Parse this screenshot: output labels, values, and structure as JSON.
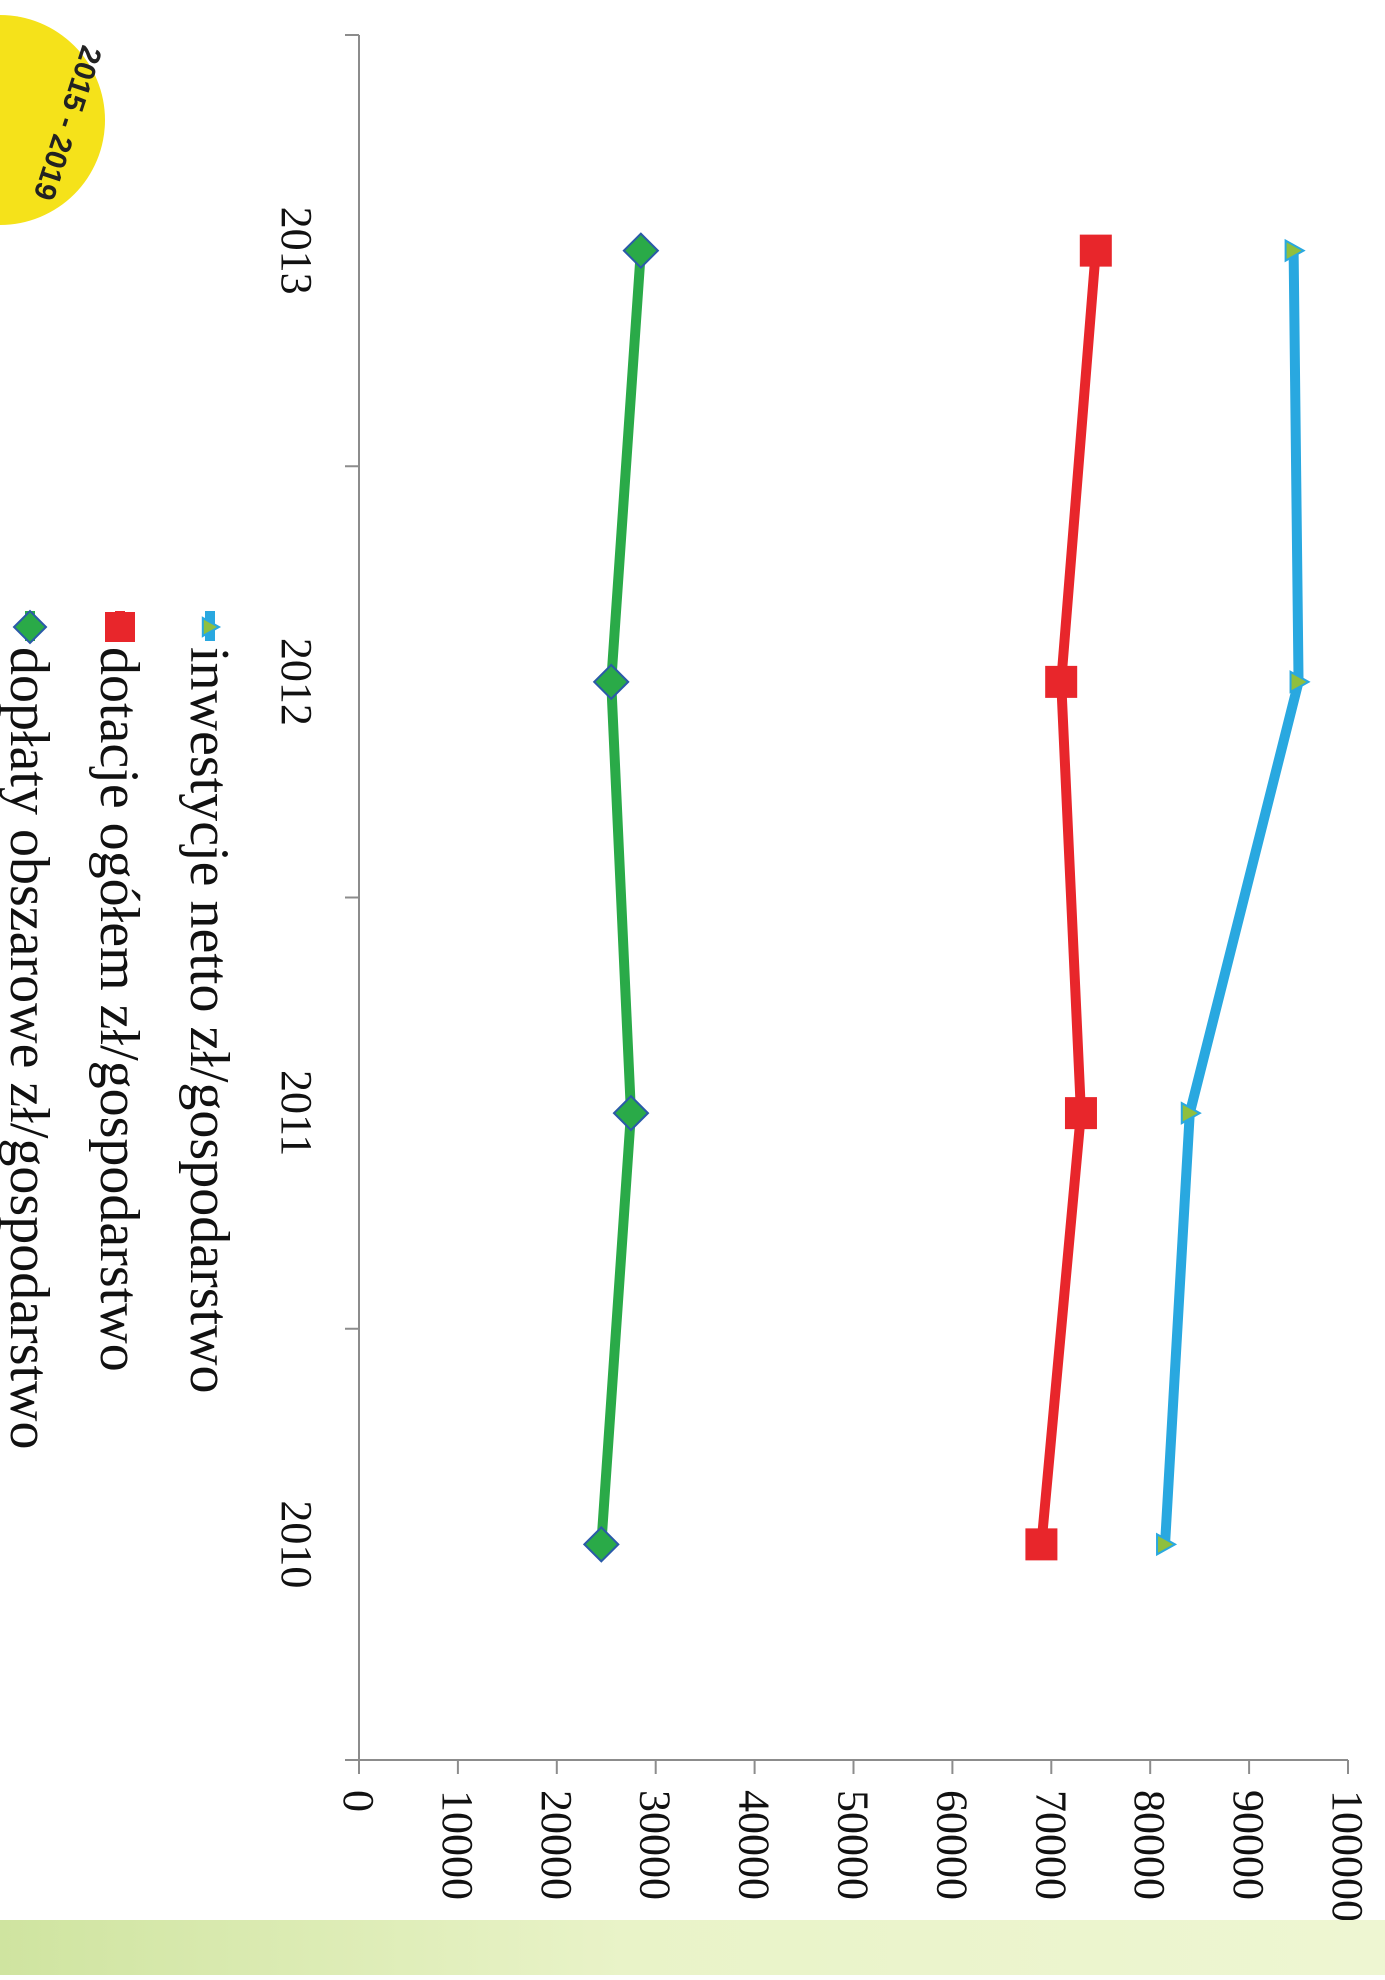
{
  "chart_data": {
    "type": "line",
    "categories": [
      "2010",
      "2011",
      "2012",
      "2013"
    ],
    "ylim": [
      0,
      100000
    ],
    "yticks": [
      "0",
      "10000",
      "20000",
      "30000",
      "40000",
      "50000",
      "60000",
      "70000",
      "80000",
      "90000",
      "100000"
    ],
    "grid": false,
    "legend_position": "bottom",
    "series": [
      {
        "name": "inwestycje netto zł/gospodarstwo",
        "color": "#29a8e0",
        "marker": "triangle",
        "values": [
          81500,
          84000,
          95000,
          94500
        ]
      },
      {
        "name": "dotacje ogółem zł/gospodarstwo",
        "color": "#e8262b",
        "marker": "square",
        "values": [
          69000,
          73000,
          71000,
          74500
        ]
      },
      {
        "name": "dopłaty obszarowe zł/gospodarstwo",
        "color": "#2aaa48",
        "marker": "diamond",
        "values": [
          24500,
          27500,
          25500,
          28500
        ]
      }
    ]
  },
  "logo": {
    "text": "2015 - 2019",
    "color": "#f5e21a"
  }
}
